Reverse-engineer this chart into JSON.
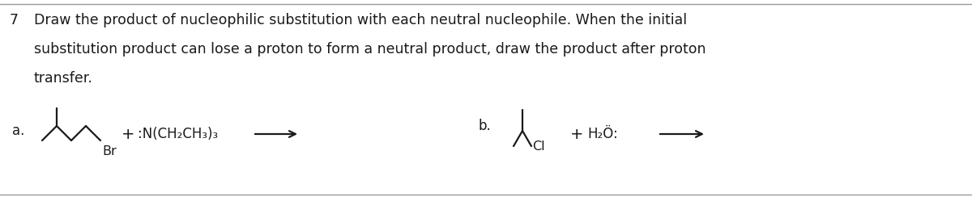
{
  "title_number": "7",
  "instruction_line1": "Draw the product of nucleophilic substitution with each neutral nucleophile. When the initial",
  "instruction_line2": "substitution product can lose a proton to form a neutral product, draw the product after proton",
  "instruction_line3": "transfer.",
  "label_a": "a.",
  "label_b": "b.",
  "nucleophile_a": ":N(CH₂CH₃)₃",
  "nucleophile_b": "H₂Ö:",
  "halide_a": "Br",
  "halide_b": "Cl",
  "bg_color": "#ffffff",
  "text_color": "#1a1a1a",
  "line_color": "#1a1a1a",
  "border_color": "#999999",
  "font_size_instruction": 12.5,
  "font_size_label": 12,
  "font_size_chem": 12,
  "fig_width": 12.0,
  "fig_height": 2.44,
  "dpi": 100
}
